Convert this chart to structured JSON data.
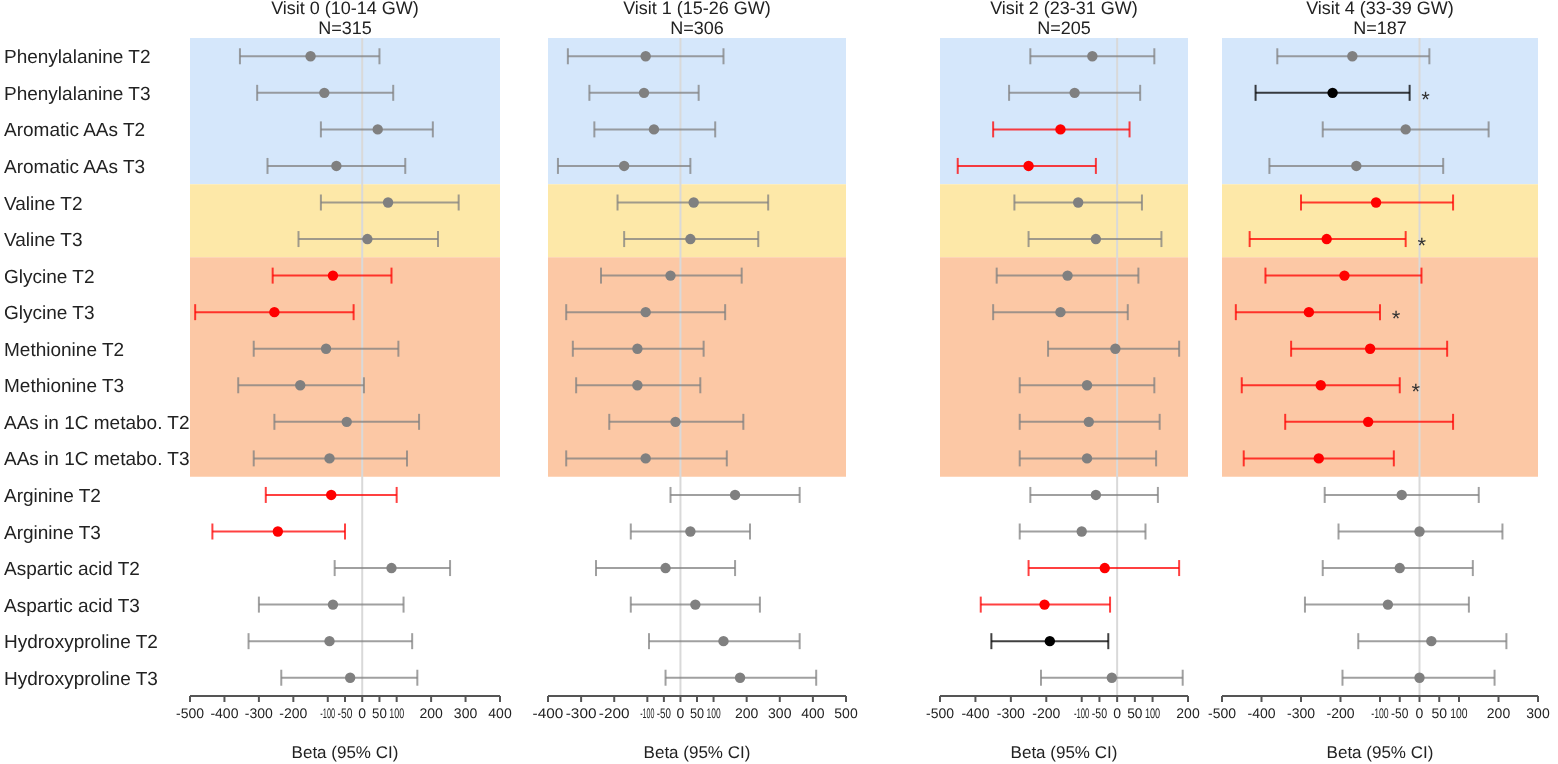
{
  "chart_data": [
    {
      "type": "scatter",
      "orientation": "horizontal",
      "marker": "circle",
      "title": "Visit 0 (10-14 GW)",
      "subtitle": "N=315",
      "xlabel": "Beta (95% CI)",
      "categories": [
        "Phenylalanine T2",
        "Phenylalanine T3",
        "Aromatic AAs T2",
        "Aromatic AAs T3",
        "Valine T2",
        "Valine T3",
        "Glycine T2",
        "Glycine T3",
        "Methionine T2",
        "Methionine T3",
        "AAs in 1C metabo. T2",
        "AAs in 1C metabo. T3",
        "Arginine T2",
        "Arginine T3",
        "Aspartic acid T2",
        "Aspartic acid T3",
        "Hydroxyproline T2",
        "Hydroxyproline T3"
      ],
      "values": [
        -150,
        -110,
        45,
        -75,
        75,
        15,
        -85,
        -255,
        -105,
        -180,
        -45,
        -95,
        -90,
        -245,
        85,
        -85,
        -95,
        -35
      ],
      "errors": [
        [
          -355,
          50
        ],
        [
          -305,
          90
        ],
        [
          -120,
          205
        ],
        [
          -275,
          125
        ],
        [
          -120,
          280
        ],
        [
          -185,
          220
        ],
        [
          -260,
          85
        ],
        [
          -485,
          -25
        ],
        [
          -315,
          105
        ],
        [
          -360,
          5
        ],
        [
          -255,
          165
        ],
        [
          -315,
          130
        ],
        [
          -280,
          100
        ],
        [
          -435,
          -50
        ],
        [
          -80,
          255
        ],
        [
          -300,
          120
        ],
        [
          -330,
          145
        ],
        [
          -235,
          160
        ]
      ],
      "colors": [
        "#808080",
        "#808080",
        "#808080",
        "#808080",
        "#808080",
        "#808080",
        "#ff0000",
        "#ff0000",
        "#808080",
        "#808080",
        "#808080",
        "#808080",
        "#ff0000",
        "#ff0000",
        "#808080",
        "#808080",
        "#808080",
        "#808080"
      ],
      "xlim": [
        -500,
        400
      ],
      "xticks": [
        -500,
        -400,
        -300,
        -200,
        -100,
        -50,
        0,
        50,
        100,
        200,
        300,
        400
      ],
      "bands": [
        {
          "axis": "y",
          "from": "Phenylalanine T2",
          "to": "Aromatic AAs T3",
          "color": "#d5e7fb"
        },
        {
          "axis": "y",
          "from": "Valine T2",
          "to": "Valine T3",
          "color": "#fde8a8"
        },
        {
          "axis": "y",
          "from": "Glycine T2",
          "to": "AAs in 1C metabo. T3",
          "color": "#fcc8a5"
        }
      ],
      "ref_lines": [
        {
          "axis": "x",
          "value": 0,
          "color": "#d9d9d9"
        }
      ]
    },
    {
      "type": "scatter",
      "orientation": "horizontal",
      "marker": "circle",
      "title": "Visit 1 (15-26 GW)",
      "subtitle": "N=306",
      "xlabel": "Beta (95% CI)",
      "tick_labels": "x",
      "categories": [
        "Phenylalanine T2",
        "Phenylalanine T3",
        "Aromatic AAs T2",
        "Aromatic AAs T3",
        "Valine T2",
        "Valine T3",
        "Glycine T2",
        "Glycine T3",
        "Methionine T2",
        "Methionine T3",
        "AAs in 1C metabo. T2",
        "AAs in 1C metabo. T3",
        "Arginine T2",
        "Arginine T3",
        "Aspartic acid T2",
        "Aspartic acid T3",
        "Hydroxyproline T2",
        "Hydroxyproline T3"
      ],
      "values": [
        -105,
        -110,
        -80,
        -170,
        40,
        30,
        -30,
        -105,
        -130,
        -130,
        -15,
        -105,
        165,
        30,
        -45,
        45,
        130,
        180
      ],
      "errors": [
        [
          -340,
          130
        ],
        [
          -275,
          55
        ],
        [
          -260,
          105
        ],
        [
          -370,
          30
        ],
        [
          -190,
          265
        ],
        [
          -170,
          235
        ],
        [
          -240,
          185
        ],
        [
          -345,
          135
        ],
        [
          -325,
          70
        ],
        [
          -315,
          60
        ],
        [
          -215,
          190
        ],
        [
          -345,
          140
        ],
        [
          -30,
          360
        ],
        [
          -150,
          210
        ],
        [
          -255,
          165
        ],
        [
          -150,
          240
        ],
        [
          -95,
          360
        ],
        [
          -45,
          410
        ]
      ],
      "colors": [
        "#808080",
        "#808080",
        "#808080",
        "#808080",
        "#808080",
        "#808080",
        "#808080",
        "#808080",
        "#808080",
        "#808080",
        "#808080",
        "#808080",
        "#808080",
        "#808080",
        "#808080",
        "#808080",
        "#808080",
        "#808080"
      ],
      "xlim": [
        -400,
        500
      ],
      "xticks": [
        -400,
        -300,
        -200,
        -100,
        -50,
        0,
        50,
        100,
        200,
        300,
        400,
        500
      ],
      "bands": [
        {
          "axis": "y",
          "from": "Phenylalanine T2",
          "to": "Aromatic AAs T3",
          "color": "#d5e7fb"
        },
        {
          "axis": "y",
          "from": "Valine T2",
          "to": "Valine T3",
          "color": "#fde8a8"
        },
        {
          "axis": "y",
          "from": "Glycine T2",
          "to": "AAs in 1C metabo. T3",
          "color": "#fcc8a5"
        }
      ],
      "ref_lines": [
        {
          "axis": "x",
          "value": 0,
          "color": "#d9d9d9"
        }
      ]
    },
    {
      "type": "scatter",
      "orientation": "horizontal",
      "marker": "circle",
      "title": "Visit 2 (23-31 GW)",
      "subtitle": "N=205",
      "xlabel": "Beta (95% CI)",
      "tick_labels": "x",
      "categories": [
        "Phenylalanine T2",
        "Phenylalanine T3",
        "Aromatic AAs T2",
        "Aromatic AAs T3",
        "Valine T2",
        "Valine T3",
        "Glycine T2",
        "Glycine T3",
        "Methionine T2",
        "Methionine T3",
        "AAs in 1C metabo. T2",
        "AAs in 1C metabo. T3",
        "Arginine T2",
        "Arginine T3",
        "Aspartic acid T2",
        "Aspartic acid T3",
        "Hydroxyproline T2",
        "Hydroxyproline T3"
      ],
      "values": [
        -70,
        -120,
        -160,
        -250,
        -110,
        -60,
        -140,
        -160,
        -5,
        -85,
        -80,
        -85,
        -60,
        -100,
        -35,
        -205,
        -190,
        -15
      ],
      "errors": [
        [
          -245,
          105
        ],
        [
          -305,
          65
        ],
        [
          -350,
          35
        ],
        [
          -450,
          -60
        ],
        [
          -290,
          70
        ],
        [
          -250,
          125
        ],
        [
          -340,
          60
        ],
        [
          -350,
          30
        ],
        [
          -195,
          175
        ],
        [
          -275,
          105
        ],
        [
          -275,
          120
        ],
        [
          -275,
          110
        ],
        [
          -245,
          115
        ],
        [
          -275,
          80
        ],
        [
          -250,
          175
        ],
        [
          -385,
          -20
        ],
        [
          -355,
          -25
        ],
        [
          -215,
          185
        ]
      ],
      "colors": [
        "#808080",
        "#808080",
        "#ff0000",
        "#ff0000",
        "#808080",
        "#808080",
        "#808080",
        "#808080",
        "#808080",
        "#808080",
        "#808080",
        "#808080",
        "#808080",
        "#808080",
        "#ff0000",
        "#ff0000",
        "#000000",
        "#808080"
      ],
      "xlim": [
        -500,
        200
      ],
      "xticks": [
        -500,
        -400,
        -300,
        -200,
        -100,
        -50,
        0,
        50,
        100,
        200
      ],
      "bands": [
        {
          "axis": "y",
          "from": "Phenylalanine T2",
          "to": "Aromatic AAs T3",
          "color": "#d5e7fb"
        },
        {
          "axis": "y",
          "from": "Valine T2",
          "to": "Valine T3",
          "color": "#fde8a8"
        },
        {
          "axis": "y",
          "from": "Glycine T2",
          "to": "AAs in 1C metabo. T3",
          "color": "#fcc8a5"
        }
      ],
      "ref_lines": [
        {
          "axis": "x",
          "value": 0,
          "color": "#d9d9d9"
        }
      ]
    },
    {
      "type": "scatter",
      "orientation": "horizontal",
      "marker": "circle",
      "title": "Visit 4 (33-39 GW)",
      "subtitle": "N=187",
      "xlabel": "Beta (95% CI)",
      "tick_labels": "x",
      "categories": [
        "Phenylalanine T2",
        "Phenylalanine T3",
        "Aromatic AAs T2",
        "Aromatic AAs T3",
        "Valine T2",
        "Valine T3",
        "Glycine T2",
        "Glycine T3",
        "Methionine T2",
        "Methionine T3",
        "AAs in 1C metabo. T2",
        "AAs in 1C metabo. T3",
        "Arginine T2",
        "Arginine T3",
        "Aspartic acid T2",
        "Aspartic acid T3",
        "Hydroxyproline T2",
        "Hydroxyproline T3"
      ],
      "values": [
        -170,
        -220,
        -35,
        -160,
        -110,
        -235,
        -190,
        -280,
        -125,
        -250,
        -130,
        -255,
        -45,
        0,
        -50,
        -80,
        30,
        0
      ],
      "errors": [
        [
          -360,
          25
        ],
        [
          -415,
          -25
        ],
        [
          -245,
          175
        ],
        [
          -380,
          60
        ],
        [
          -300,
          85
        ],
        [
          -430,
          -35
        ],
        [
          -390,
          5
        ],
        [
          -465,
          -100
        ],
        [
          -325,
          70
        ],
        [
          -450,
          -50
        ],
        [
          -340,
          85
        ],
        [
          -445,
          -65
        ],
        [
          -240,
          150
        ],
        [
          -205,
          210
        ],
        [
          -245,
          135
        ],
        [
          -290,
          125
        ],
        [
          -155,
          220
        ],
        [
          -195,
          190
        ]
      ],
      "colors": [
        "#808080",
        "#000000",
        "#808080",
        "#808080",
        "#ff0000",
        "#ff0000",
        "#ff0000",
        "#ff0000",
        "#ff0000",
        "#ff0000",
        "#ff0000",
        "#ff0000",
        "#808080",
        "#808080",
        "#808080",
        "#808080",
        "#808080",
        "#808080"
      ],
      "xlim": [
        -500,
        300
      ],
      "xticks": [
        -500,
        -400,
        -300,
        -200,
        -100,
        -50,
        0,
        50,
        100,
        200,
        300
      ],
      "bands": [
        {
          "axis": "y",
          "from": "Phenylalanine T2",
          "to": "Aromatic AAs T3",
          "color": "#d5e7fb"
        },
        {
          "axis": "y",
          "from": "Valine T2",
          "to": "Valine T3",
          "color": "#fde8a8"
        },
        {
          "axis": "y",
          "from": "Glycine T2",
          "to": "AAs in 1C metabo. T3",
          "color": "#fcc8a5"
        }
      ],
      "ref_lines": [
        {
          "axis": "x",
          "value": 0,
          "color": "#d9d9d9"
        }
      ],
      "annotations": [
        {
          "text": "*",
          "x": -25,
          "y": "Phenylalanine T3"
        },
        {
          "text": "*",
          "x": -35,
          "y": "Valine T3"
        },
        {
          "text": "*",
          "x": -100,
          "y": "Glycine T3"
        },
        {
          "text": "*",
          "x": -50,
          "y": "Methionine T3"
        }
      ]
    }
  ]
}
